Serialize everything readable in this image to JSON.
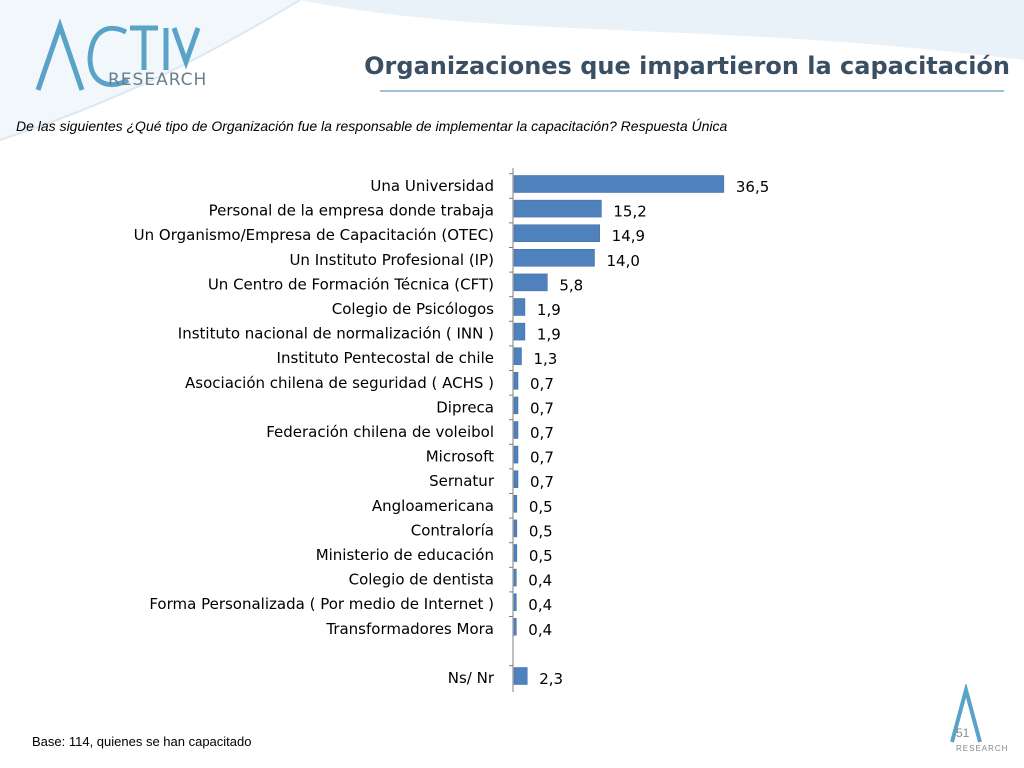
{
  "header": {
    "logo_text": "RESEARCH",
    "title": "Organizaciones que impartieron la capacitación"
  },
  "subtitle": "De las siguientes ¿Qué tipo de Organización fue la responsable de implementar la capacitación? Respuesta Única",
  "footer": {
    "base_note": "Base: 114, quienes se han capacitado",
    "page_number": "51",
    "small_logo_text": "RESEARCH"
  },
  "colors": {
    "bar": "#4f81bd",
    "title": "#3b4f63",
    "accent": "#9fc2d7"
  },
  "chart_data": {
    "type": "bar",
    "orientation": "horizontal",
    "categories": [
      "Una Universidad",
      "Personal de la empresa donde trabaja",
      "Un Organismo/Empresa de Capacitación (OTEC)",
      "Un Instituto Profesional (IP)",
      "Un Centro de Formación Técnica (CFT)",
      "Colegio de Psicólogos",
      "Instituto nacional de normalización ( INN )",
      "Instituto Pentecostal de chile",
      "Asociación chilena de seguridad ( ACHS )",
      "Dipreca",
      "Federación chilena de voleibol",
      "Microsoft",
      "Sernatur",
      "Angloamericana",
      "Contraloría",
      "Ministerio de educación",
      "Colegio de dentista",
      "Forma Personalizada ( Por medio de Internet )",
      "Transformadores Mora",
      "Ns/ Nr"
    ],
    "values": [
      36.5,
      15.2,
      14.9,
      14.0,
      5.8,
      1.9,
      1.9,
      1.3,
      0.7,
      0.7,
      0.7,
      0.7,
      0.7,
      0.5,
      0.5,
      0.5,
      0.4,
      0.4,
      0.4,
      2.3
    ],
    "data_labels": [
      "36,5",
      "15,2",
      "14,9",
      "14,0",
      "5,8",
      "1,9",
      "1,9",
      "1,3",
      "0,7",
      "0,7",
      "0,7",
      "0,7",
      "0,7",
      "0,5",
      "0,5",
      "0,5",
      "0,4",
      "0,4",
      "0,4",
      "2,3"
    ],
    "xlim": [
      0,
      40
    ],
    "grid": false,
    "legend": "none"
  }
}
